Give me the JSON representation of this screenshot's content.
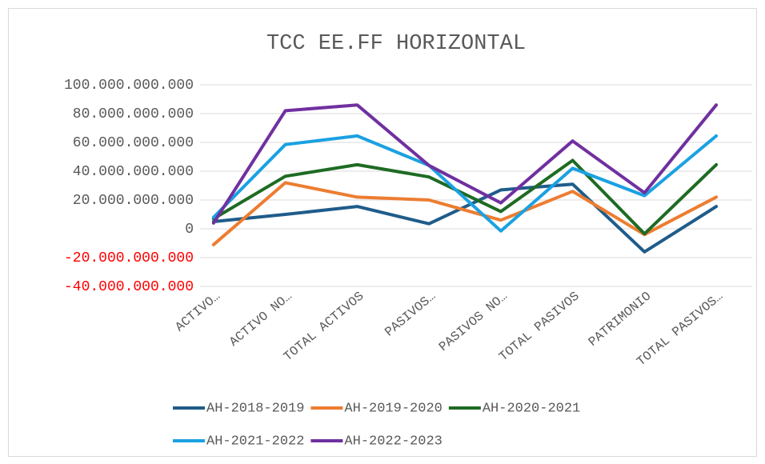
{
  "chart_data": {
    "type": "line",
    "title": "TCC EE.FF HORIZONTAL",
    "categories": [
      "ACTIVO…",
      "ACTIVO NO…",
      "TOTAL ACTIVOS",
      "PASIVOS…",
      "PASIVOS NO…",
      "TOTAL PASIVOS",
      "PATRIMONIO",
      "TOTAL PASIVOS…"
    ],
    "series": [
      {
        "name": "AH-2018-2019",
        "color": "#1f5c8a",
        "values": [
          5000000000,
          10000000000,
          15500000000,
          3500000000,
          27000000000,
          31000000000,
          -16000000000,
          15500000000
        ]
      },
      {
        "name": "AH-2019-2020",
        "color": "#ed7d31",
        "values": [
          -11000000000,
          32000000000,
          22000000000,
          20000000000,
          6000000000,
          26000000000,
          -4000000000,
          22000000000
        ]
      },
      {
        "name": "AH-2020-2021",
        "color": "#1e6b23",
        "values": [
          7000000000,
          36500000000,
          44500000000,
          36000000000,
          12000000000,
          47500000000,
          -3500000000,
          44500000000
        ]
      },
      {
        "name": "AH-2021-2022",
        "color": "#1ba1e2",
        "values": [
          8000000000,
          58500000000,
          64500000000,
          44000000000,
          -1500000000,
          42000000000,
          23000000000,
          64500000000
        ]
      },
      {
        "name": "AH-2022-2023",
        "color": "#7030a0",
        "values": [
          4000000000,
          82000000000,
          86000000000,
          44000000000,
          18000000000,
          61000000000,
          25000000000,
          86000000000
        ]
      }
    ],
    "ylim": [
      -40000000000,
      100000000000
    ],
    "yticks": [
      {
        "value": -40000000000,
        "label": "-40.000.000.000"
      },
      {
        "value": -20000000000,
        "label": "-20.000.000.000"
      },
      0,
      {
        "value": 20000000000,
        "label": "20.000.000.000"
      },
      {
        "value": 40000000000,
        "label": "40.000.000.000"
      },
      {
        "value": 60000000000,
        "label": "60.000.000.000"
      },
      {
        "value": 80000000000,
        "label": "80.000.000.000"
      },
      {
        "value": 100000000000,
        "label": "100.000.000.000"
      }
    ],
    "grid": true
  }
}
